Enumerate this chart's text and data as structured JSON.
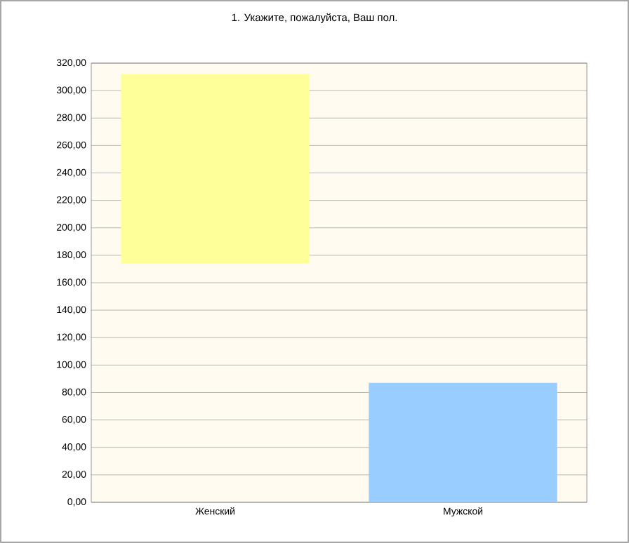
{
  "chart_data": {
    "type": "bar",
    "title": "1. Укажите, пожалуйста, Ваш пол.",
    "categories": [
      "Женский",
      "Мужской"
    ],
    "values": [
      138,
      87
    ],
    "base": [
      174,
      0
    ],
    "colors": [
      "#ffff99",
      "#99ccff"
    ],
    "ylim": [
      0,
      320
    ],
    "yticks": [
      {
        "value": 0,
        "label": "0,00"
      },
      {
        "value": 20,
        "label": "20,00"
      },
      {
        "value": 40,
        "label": "40,00"
      },
      {
        "value": 60,
        "label": "60,00"
      },
      {
        "value": 80,
        "label": "80,00"
      },
      {
        "value": 100,
        "label": "100,00"
      },
      {
        "value": 120,
        "label": "120,00"
      },
      {
        "value": 140,
        "label": "140,00"
      },
      {
        "value": 160,
        "label": "160,00"
      },
      {
        "value": 180,
        "label": "180,00"
      },
      {
        "value": 200,
        "label": "200,00"
      },
      {
        "value": 220,
        "label": "220,00"
      },
      {
        "value": 240,
        "label": "240,00"
      },
      {
        "value": 260,
        "label": "260,00"
      },
      {
        "value": 280,
        "label": "280,00"
      },
      {
        "value": 300,
        "label": "300,00"
      },
      {
        "value": 320,
        "label": "320,00"
      }
    ],
    "grid": "y"
  }
}
